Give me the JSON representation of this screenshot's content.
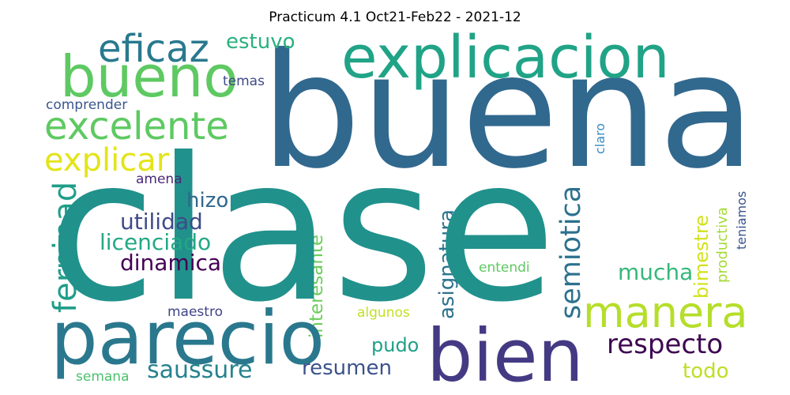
{
  "title": "Practicum 4.1 Oct21-Feb22 - 2021-12",
  "words": [
    {
      "text": "clase",
      "color": "#21918c"
    },
    {
      "text": "buena",
      "color": "#31688e"
    },
    {
      "text": "parecio",
      "color": "#2a788e"
    },
    {
      "text": "bien",
      "color": "#443a83"
    },
    {
      "text": "explicacion",
      "color": "#20a386"
    },
    {
      "text": "bueno",
      "color": "#5ec962"
    },
    {
      "text": "eficaz",
      "color": "#29798e"
    },
    {
      "text": "estuvo",
      "color": "#2ab07f"
    },
    {
      "text": "excelente",
      "color": "#5ec962"
    },
    {
      "text": "explicar",
      "color": "#e3e418"
    },
    {
      "text": "manera",
      "color": "#b5de2b"
    },
    {
      "text": "respecto",
      "color": "#3e0751"
    },
    {
      "text": "saussure",
      "color": "#26828e"
    },
    {
      "text": "semiotica",
      "color": "#2c718e"
    },
    {
      "text": "ferninad",
      "color": "#1f9e89"
    },
    {
      "text": "utilidad",
      "color": "#3e4a89"
    },
    {
      "text": "licenciado",
      "color": "#22a884"
    },
    {
      "text": "dinamica",
      "color": "#440154"
    },
    {
      "text": "hizo",
      "color": "#31688e"
    },
    {
      "text": "mucha",
      "color": "#35b779"
    },
    {
      "text": "asignatura",
      "color": "#2c728e"
    },
    {
      "text": "interesante",
      "color": "#6ccd5a"
    },
    {
      "text": "bimestre",
      "color": "#d2e21b"
    },
    {
      "text": "pudo",
      "color": "#1fa088"
    },
    {
      "text": "resumen",
      "color": "#3b528b"
    },
    {
      "text": "todo",
      "color": "#bddf26"
    },
    {
      "text": "temas",
      "color": "#3e4989"
    },
    {
      "text": "comprender",
      "color": "#39568c"
    },
    {
      "text": "amena",
      "color": "#482878"
    },
    {
      "text": "maestro",
      "color": "#414487"
    },
    {
      "text": "semana",
      "color": "#4ac16d"
    },
    {
      "text": "algunos",
      "color": "#c2df23"
    },
    {
      "text": "entendi",
      "color": "#5ec962"
    },
    {
      "text": "claro",
      "color": "#3b8bc0"
    },
    {
      "text": "productiva",
      "color": "#a5db36"
    },
    {
      "text": "teniamos",
      "color": "#3a548c"
    }
  ]
}
